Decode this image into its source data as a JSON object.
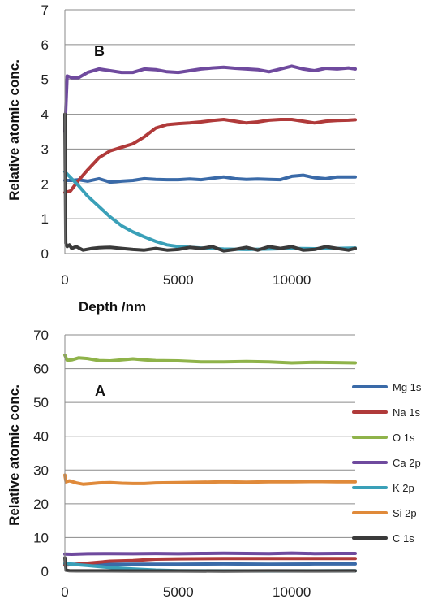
{
  "chart_data": [
    {
      "type": "line",
      "panel": "B",
      "xlabel": "Depth /nm",
      "ylabel": "Relative atomic conc.",
      "xlim": [
        0,
        12800
      ],
      "ylim": [
        0,
        7
      ],
      "grid": "horizontal",
      "x_ticks": [
        "0",
        "5000",
        "10000"
      ],
      "y_ticks": [
        "0",
        "1",
        "2",
        "3",
        "4",
        "5",
        "6",
        "7"
      ],
      "series": [
        {
          "name": "Mg 1s",
          "color": "#3a6aa8",
          "x": [
            0,
            300,
            600,
            1000,
            1500,
            2000,
            2500,
            3000,
            3500,
            4000,
            4500,
            5000,
            5500,
            6000,
            6500,
            7000,
            7500,
            8000,
            8500,
            9000,
            9500,
            10000,
            10500,
            11000,
            11500,
            12000,
            12500,
            12800
          ],
          "y": [
            2.1,
            2.1,
            2.12,
            2.08,
            2.15,
            2.05,
            2.08,
            2.1,
            2.15,
            2.13,
            2.12,
            2.12,
            2.14,
            2.12,
            2.16,
            2.2,
            2.15,
            2.13,
            2.14,
            2.13,
            2.12,
            2.22,
            2.25,
            2.18,
            2.15,
            2.2,
            2.2,
            2.2
          ]
        },
        {
          "name": "Na 1s",
          "color": "#b03a3a",
          "x": [
            0,
            250,
            600,
            1000,
            1500,
            2000,
            2500,
            3000,
            3500,
            4000,
            4500,
            5000,
            5500,
            6000,
            6500,
            7000,
            7500,
            8000,
            8500,
            9000,
            9500,
            10000,
            10500,
            11000,
            11500,
            12000,
            12500,
            12800
          ],
          "y": [
            1.75,
            1.8,
            2.1,
            2.4,
            2.75,
            2.95,
            3.05,
            3.15,
            3.35,
            3.6,
            3.7,
            3.73,
            3.75,
            3.78,
            3.82,
            3.85,
            3.8,
            3.75,
            3.78,
            3.83,
            3.85,
            3.85,
            3.8,
            3.75,
            3.8,
            3.82,
            3.83,
            3.84
          ]
        },
        {
          "name": "O 1s",
          "color": "#8fb34a",
          "x": [],
          "y": []
        },
        {
          "name": "Ca 2p",
          "color": "#6f4a9e",
          "x": [
            0,
            100,
            300,
            600,
            1000,
            1500,
            2000,
            2500,
            3000,
            3500,
            4000,
            4500,
            5000,
            5500,
            6000,
            6500,
            7000,
            7500,
            8000,
            8500,
            9000,
            9500,
            10000,
            10500,
            11000,
            11500,
            12000,
            12500,
            12800
          ],
          "y": [
            3.5,
            5.1,
            5.05,
            5.05,
            5.2,
            5.3,
            5.25,
            5.2,
            5.2,
            5.3,
            5.28,
            5.22,
            5.2,
            5.25,
            5.3,
            5.33,
            5.35,
            5.32,
            5.3,
            5.28,
            5.22,
            5.3,
            5.38,
            5.3,
            5.25,
            5.32,
            5.3,
            5.33,
            5.3
          ]
        },
        {
          "name": "K 2p",
          "color": "#3aa0b8",
          "x": [
            0,
            300,
            600,
            1000,
            1500,
            2000,
            2500,
            3000,
            3500,
            4000,
            4500,
            5000,
            5500,
            6000,
            6500,
            7000,
            8000,
            9000,
            10000,
            11000,
            12000,
            12800
          ],
          "y": [
            2.35,
            2.15,
            1.95,
            1.65,
            1.35,
            1.05,
            0.8,
            0.62,
            0.48,
            0.35,
            0.25,
            0.2,
            0.18,
            0.16,
            0.15,
            0.13,
            0.12,
            0.13,
            0.15,
            0.14,
            0.15,
            0.16
          ]
        },
        {
          "name": "C 1s",
          "color": "#3a3a3a",
          "x": [
            0,
            40,
            100,
            200,
            300,
            500,
            800,
            1200,
            1500,
            2000,
            2500,
            3000,
            3500,
            4000,
            4500,
            5000,
            5500,
            6000,
            6500,
            7000,
            7500,
            8000,
            8500,
            9000,
            9500,
            10000,
            10500,
            11000,
            11500,
            12000,
            12500,
            12800
          ],
          "y": [
            4.0,
            0.3,
            0.2,
            0.25,
            0.15,
            0.2,
            0.1,
            0.15,
            0.17,
            0.18,
            0.15,
            0.12,
            0.1,
            0.15,
            0.1,
            0.12,
            0.18,
            0.15,
            0.2,
            0.08,
            0.12,
            0.18,
            0.1,
            0.2,
            0.15,
            0.2,
            0.1,
            0.12,
            0.2,
            0.15,
            0.1,
            0.15
          ]
        }
      ]
    },
    {
      "type": "line",
      "panel": "A",
      "xlabel": "",
      "ylabel": "Relative atomic conc.",
      "xlim": [
        0,
        12800
      ],
      "ylim": [
        0,
        70
      ],
      "grid": "horizontal",
      "legend": "right",
      "x_ticks": [
        "0",
        "5000",
        "10000"
      ],
      "y_ticks": [
        "0",
        "10",
        "20",
        "30",
        "40",
        "50",
        "60",
        "70"
      ],
      "series": [
        {
          "name": "Mg 1s",
          "color": "#3a6aa8",
          "x": [
            0,
            1000,
            3000,
            5000,
            7000,
            9000,
            11000,
            12800
          ],
          "y": [
            2.1,
            2.1,
            2.1,
            2.1,
            2.2,
            2.1,
            2.2,
            2.2
          ]
        },
        {
          "name": "Na 1s",
          "color": "#b03a3a",
          "x": [
            0,
            1000,
            2000,
            3000,
            4000,
            5000,
            7000,
            9000,
            11000,
            12800
          ],
          "y": [
            1.8,
            2.4,
            3.0,
            3.2,
            3.6,
            3.7,
            3.8,
            3.8,
            3.8,
            3.8
          ]
        },
        {
          "name": "O 1s",
          "color": "#8fb34a",
          "x": [
            0,
            100,
            300,
            600,
            1000,
            1500,
            2000,
            2500,
            3000,
            3500,
            4000,
            5000,
            6000,
            7000,
            8000,
            9000,
            10000,
            11000,
            12000,
            12800
          ],
          "y": [
            64,
            62.5,
            62.6,
            63.2,
            63.0,
            62.4,
            62.3,
            62.6,
            62.9,
            62.6,
            62.4,
            62.3,
            62.0,
            62.0,
            62.1,
            62.0,
            61.7,
            61.9,
            61.8,
            61.7
          ]
        },
        {
          "name": "Ca 2p",
          "color": "#6f4a9e",
          "x": [
            0,
            300,
            1000,
            2000,
            3000,
            4000,
            5000,
            6000,
            7000,
            8000,
            9000,
            10000,
            11000,
            12000,
            12800
          ],
          "y": [
            5.1,
            5.05,
            5.2,
            5.25,
            5.2,
            5.28,
            5.2,
            5.3,
            5.35,
            5.3,
            5.22,
            5.38,
            5.25,
            5.3,
            5.3
          ]
        },
        {
          "name": "K 2p",
          "color": "#3aa0b8",
          "x": [
            0,
            500,
            1000,
            2000,
            3000,
            4000,
            5000,
            7000,
            9000,
            11000,
            12800
          ],
          "y": [
            2.35,
            2.0,
            1.7,
            1.1,
            0.7,
            0.35,
            0.2,
            0.15,
            0.13,
            0.14,
            0.16
          ]
        },
        {
          "name": "Si 2p",
          "color": "#e08a3a",
          "x": [
            0,
            50,
            200,
            500,
            800,
            1200,
            1500,
            2000,
            2500,
            3000,
            3500,
            4000,
            5000,
            6000,
            7000,
            8000,
            9000,
            10000,
            11000,
            12000,
            12800
          ],
          "y": [
            28.5,
            26.5,
            26.8,
            26.2,
            25.8,
            26.0,
            26.2,
            26.3,
            26.1,
            26.0,
            26.0,
            26.2,
            26.3,
            26.4,
            26.5,
            26.4,
            26.5,
            26.5,
            26.6,
            26.5,
            26.5
          ]
        },
        {
          "name": "C 1s",
          "color": "#3a3a3a",
          "x": [
            0,
            50,
            200,
            500,
            1000,
            3000,
            5000,
            7000,
            9000,
            11000,
            12800
          ],
          "y": [
            4.0,
            0.3,
            0.2,
            0.15,
            0.15,
            0.12,
            0.12,
            0.1,
            0.15,
            0.12,
            0.15
          ]
        }
      ]
    }
  ]
}
